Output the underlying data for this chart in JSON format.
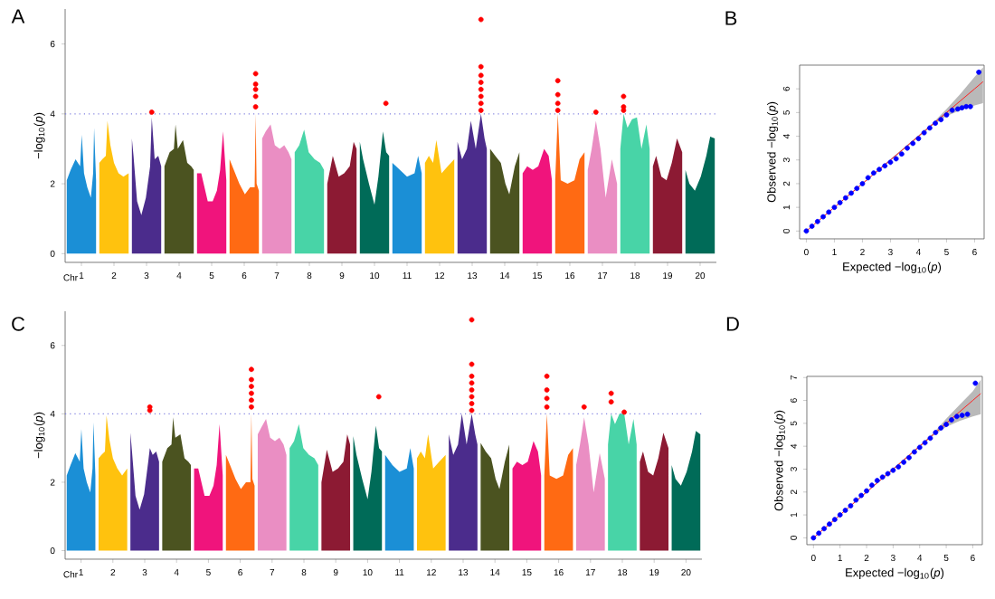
{
  "chart_data": [
    {
      "type": "area",
      "title": "A",
      "xlabel": "Chr",
      "ylabel": "−log$_{10}$(*p*)",
      "xlim": [
        0.5,
        20.5
      ],
      "xticks": [
        1,
        2,
        3,
        4,
        5,
        6,
        7,
        8,
        9,
        10,
        11,
        12,
        13,
        14,
        15,
        16,
        17,
        18,
        19,
        20
      ],
      "ylim": [
        -0.25,
        7
      ],
      "yticks": [
        0,
        2,
        4,
        6
      ],
      "ref_lines": [
        {
          "axis": "y",
          "value": 4,
          "color": "#8080e0",
          "line_style": "dotted"
        }
      ],
      "series": [
        {
          "color": "#1b8fd6",
          "x": [
            0.55,
            0.67,
            0.82,
            0.96,
            1.01,
            1.08,
            1.18,
            1.29,
            1.36,
            1.39,
            1.45
          ],
          "values": [
            2.1,
            2.4,
            2.7,
            2.5,
            3.4,
            2.3,
            1.9,
            1.6,
            2.3,
            3.6,
            2.1
          ]
        },
        {
          "color": "#ffc20e",
          "x": [
            1.55,
            1.64,
            1.75,
            1.8,
            1.89,
            2.0,
            2.14,
            2.29,
            2.45
          ],
          "values": [
            2.6,
            2.7,
            2.8,
            3.8,
            3.1,
            2.6,
            2.3,
            2.2,
            2.3
          ]
        },
        {
          "color": "#4b2c8c",
          "x": [
            2.55,
            2.6,
            2.71,
            2.84,
            2.98,
            3.11,
            3.16,
            3.25,
            3.36,
            3.45
          ],
          "values": [
            3.3,
            2.8,
            1.5,
            1.1,
            1.6,
            2.5,
            3.9,
            2.7,
            2.8,
            2.5
          ]
        },
        {
          "color": "#4b5320",
          "x": [
            3.55,
            3.71,
            3.84,
            3.89,
            3.96,
            4.12,
            4.25,
            4.37,
            4.45
          ],
          "values": [
            2.5,
            2.9,
            3.0,
            3.7,
            3.0,
            3.25,
            2.6,
            2.5,
            2.4
          ]
        },
        {
          "color": "#f0147c",
          "x": [
            4.55,
            4.68,
            4.88,
            5.03,
            5.16,
            5.26,
            5.35,
            5.45
          ],
          "values": [
            2.3,
            2.3,
            1.5,
            1.5,
            1.8,
            2.4,
            3.5,
            2.1
          ]
        },
        {
          "color": "#ff6a13",
          "x": [
            5.55,
            5.68,
            5.85,
            6.02,
            6.18,
            6.32,
            6.35,
            6.38,
            6.45
          ],
          "values": [
            2.7,
            2.4,
            2.0,
            1.7,
            1.9,
            1.9,
            4.0,
            2.0,
            1.8
          ]
        },
        {
          "color": "#ea8ec3",
          "x": [
            6.55,
            6.66,
            6.81,
            6.94,
            7.09,
            7.23,
            7.36,
            7.45
          ],
          "values": [
            3.3,
            3.5,
            3.7,
            3.1,
            3.0,
            3.1,
            2.9,
            2.7
          ]
        },
        {
          "color": "#48d4a7",
          "x": [
            7.55,
            7.69,
            7.84,
            7.98,
            8.16,
            8.33,
            8.45
          ],
          "values": [
            2.9,
            3.1,
            3.55,
            2.9,
            2.7,
            2.6,
            2.4
          ]
        },
        {
          "color": "#8c1a33",
          "x": [
            8.55,
            8.72,
            8.9,
            9.07,
            9.24,
            9.36,
            9.45
          ],
          "values": [
            2.0,
            2.8,
            2.2,
            2.3,
            2.5,
            3.2,
            3.0
          ]
        },
        {
          "color": "#006b58",
          "x": [
            9.55,
            9.65,
            9.83,
            10.0,
            10.12,
            10.26,
            10.36,
            10.45
          ],
          "values": [
            3.2,
            2.7,
            2.0,
            1.4,
            2.2,
            3.5,
            2.9,
            2.8
          ]
        },
        {
          "color": "#1b8fd6",
          "x": [
            10.55,
            10.78,
            11.0,
            11.23,
            11.34,
            11.45
          ],
          "values": [
            2.6,
            2.4,
            2.2,
            2.3,
            2.8,
            2.3
          ]
        },
        {
          "color": "#ffc20e",
          "x": [
            11.55,
            11.67,
            11.8,
            11.9,
            12.06,
            12.25,
            12.45
          ],
          "values": [
            2.6,
            2.8,
            2.6,
            3.25,
            2.3,
            2.5,
            2.7
          ]
        },
        {
          "color": "#4b2c8c",
          "x": [
            12.55,
            12.69,
            12.84,
            12.96,
            13.11,
            13.27,
            13.38,
            13.45
          ],
          "values": [
            3.2,
            2.7,
            3.0,
            3.8,
            3.0,
            4.0,
            3.3,
            3.0
          ]
        },
        {
          "color": "#4b5320",
          "x": [
            13.55,
            13.71,
            13.88,
            14.02,
            14.14,
            14.31,
            14.45
          ],
          "values": [
            3.0,
            2.8,
            2.6,
            2.0,
            1.7,
            2.5,
            2.9
          ]
        },
        {
          "color": "#f0147c",
          "x": [
            14.55,
            14.69,
            14.86,
            15.03,
            15.21,
            15.35,
            15.45
          ],
          "values": [
            2.3,
            2.5,
            2.4,
            2.5,
            3.0,
            2.8,
            2.1
          ]
        },
        {
          "color": "#ff6a13",
          "x": [
            15.55,
            15.63,
            15.72,
            15.93,
            16.14,
            16.3,
            16.45
          ],
          "values": [
            2.1,
            4.0,
            2.1,
            2.0,
            2.1,
            2.7,
            2.9
          ]
        },
        {
          "color": "#ea8ec3",
          "x": [
            16.55,
            16.67,
            16.8,
            16.94,
            17.1,
            17.29,
            17.45
          ],
          "values": [
            2.4,
            3.0,
            3.8,
            3.0,
            1.6,
            2.7,
            2.0
          ]
        },
        {
          "color": "#48d4a7",
          "x": [
            17.55,
            17.65,
            17.77,
            17.91,
            18.06,
            18.2,
            18.35,
            18.45
          ],
          "values": [
            3.0,
            4.0,
            3.6,
            3.85,
            3.9,
            3.0,
            3.7,
            3.0
          ]
        },
        {
          "color": "#8c1a33",
          "x": [
            18.55,
            18.65,
            18.81,
            18.97,
            19.13,
            19.29,
            19.45
          ],
          "values": [
            2.5,
            2.8,
            2.2,
            2.1,
            2.6,
            3.3,
            2.9
          ]
        },
        {
          "color": "#006b58",
          "x": [
            19.55,
            19.67,
            19.84,
            20.02,
            20.19,
            20.31,
            20.45
          ],
          "values": [
            2.4,
            2.0,
            1.8,
            2.2,
            2.8,
            3.35,
            3.3
          ]
        },
        {
          "type": "scatter",
          "marker": "circle",
          "color": "#ff0000",
          "x": [
            3.16,
            6.35,
            6.35,
            6.35,
            6.35,
            6.35,
            10.35,
            13.27,
            13.27,
            13.27,
            13.27,
            13.27,
            13.27,
            13.27,
            13.27,
            15.63,
            15.63,
            15.63,
            15.63,
            16.8,
            17.65,
            17.65,
            17.65
          ],
          "values": [
            4.05,
            4.2,
            4.5,
            4.7,
            4.85,
            5.15,
            4.3,
            4.1,
            4.3,
            4.5,
            4.7,
            4.9,
            5.1,
            5.35,
            6.7,
            4.1,
            4.3,
            4.55,
            4.95,
            4.05,
            4.1,
            4.2,
            4.5
          ]
        }
      ]
    },
    {
      "type": "scatter",
      "title": "B",
      "xlabel": "Expected  −log$_{10}$(*p*)",
      "ylabel": "Observed  −log$_{10}$(*p*)",
      "marker": "circle",
      "xlim": [
        -0.24,
        6.34
      ],
      "ylim": [
        -0.33,
        7.0
      ],
      "xticks": [
        0,
        1,
        2,
        3,
        4,
        5,
        6
      ],
      "yticks": [
        0,
        1,
        2,
        3,
        4,
        5,
        6
      ],
      "series": [
        {
          "type": "scatter",
          "color": "#0000ff",
          "x": [
            0,
            0.2,
            0.4,
            0.6,
            0.8,
            1.0,
            1.2,
            1.4,
            1.6,
            1.8,
            2.0,
            2.2,
            2.4,
            2.6,
            2.8,
            3.0,
            3.2,
            3.4,
            3.6,
            3.8,
            4.0,
            4.2,
            4.4,
            4.6,
            4.8,
            5.0,
            5.2,
            5.4,
            5.55,
            5.7,
            5.85,
            6.15
          ],
          "values": [
            0,
            0.2,
            0.4,
            0.6,
            0.8,
            1.0,
            1.2,
            1.4,
            1.6,
            1.8,
            2.0,
            2.25,
            2.45,
            2.6,
            2.75,
            2.9,
            3.05,
            3.25,
            3.5,
            3.7,
            3.9,
            4.15,
            4.35,
            4.55,
            4.7,
            4.9,
            5.1,
            5.15,
            5.2,
            5.25,
            5.25,
            6.7
          ]
        },
        {
          "type": "line",
          "marker": "none",
          "color": "#ff2020",
          "x": [
            0,
            4.5,
            5,
            5.5,
            6,
            6.3
          ],
          "values": [
            0,
            4.5,
            5,
            5.5,
            6,
            6.3
          ],
          "lower": [
            0,
            4.45,
            4.85,
            5.1,
            5.3,
            5.4
          ],
          "upper": [
            0,
            4.55,
            5.15,
            5.8,
            6.5,
            6.9
          ]
        }
      ]
    },
    {
      "type": "area",
      "title": "C",
      "xlabel": "Chr",
      "ylabel": "−log$_{10}$(*p*)",
      "xlim": [
        0.5,
        20.5
      ],
      "xticks": [
        1,
        2,
        3,
        4,
        5,
        6,
        7,
        8,
        9,
        10,
        11,
        12,
        13,
        14,
        15,
        16,
        17,
        18,
        19,
        20
      ],
      "ylim": [
        -0.25,
        7
      ],
      "yticks": [
        0,
        2,
        4,
        6
      ],
      "ref_lines": [
        {
          "axis": "y",
          "value": 4,
          "color": "#8080e0",
          "line_style": "dotted"
        }
      ],
      "series": [
        {
          "color": "#1b8fd6",
          "x": [
            0.55,
            0.67,
            0.82,
            0.96,
            1.01,
            1.08,
            1.18,
            1.29,
            1.36,
            1.39,
            1.45
          ],
          "values": [
            2.2,
            2.5,
            2.85,
            2.6,
            3.55,
            2.4,
            2.0,
            1.7,
            2.4,
            3.75,
            2.2
          ]
        },
        {
          "color": "#ffc20e",
          "x": [
            1.55,
            1.64,
            1.75,
            1.8,
            1.89,
            2.0,
            2.14,
            2.29,
            2.45
          ],
          "values": [
            2.7,
            2.8,
            2.9,
            3.95,
            3.25,
            2.7,
            2.4,
            2.2,
            2.4
          ]
        },
        {
          "color": "#4b2c8c",
          "x": [
            2.55,
            2.6,
            2.71,
            2.84,
            2.98,
            3.11,
            3.16,
            3.25,
            3.36,
            3.45
          ],
          "values": [
            3.45,
            2.9,
            1.6,
            1.2,
            1.65,
            2.6,
            3.0,
            2.8,
            2.9,
            2.6
          ]
        },
        {
          "color": "#4b5320",
          "x": [
            3.55,
            3.71,
            3.84,
            3.89,
            3.96,
            4.12,
            4.25,
            4.37,
            4.45
          ],
          "values": [
            2.6,
            3.0,
            3.1,
            3.9,
            3.3,
            3.4,
            2.7,
            2.6,
            2.5
          ]
        },
        {
          "color": "#f0147c",
          "x": [
            4.55,
            4.68,
            4.88,
            5.03,
            5.16,
            5.26,
            5.35,
            5.45
          ],
          "values": [
            2.4,
            2.4,
            1.6,
            1.6,
            1.9,
            2.5,
            3.7,
            2.2
          ]
        },
        {
          "color": "#ff6a13",
          "x": [
            5.55,
            5.68,
            5.85,
            6.02,
            6.18,
            6.32,
            6.35,
            6.38,
            6.45
          ],
          "values": [
            2.8,
            2.5,
            2.1,
            1.8,
            2.0,
            2.0,
            4.0,
            2.1,
            1.9
          ]
        },
        {
          "color": "#ea8ec3",
          "x": [
            6.55,
            6.66,
            6.81,
            6.94,
            7.09,
            7.23,
            7.36,
            7.45
          ],
          "values": [
            3.4,
            3.6,
            3.85,
            3.3,
            3.2,
            3.3,
            3.1,
            2.8
          ]
        },
        {
          "color": "#48d4a7",
          "x": [
            7.55,
            7.69,
            7.84,
            7.98,
            8.16,
            8.33,
            8.45
          ],
          "values": [
            3.0,
            3.2,
            3.7,
            3.0,
            2.8,
            2.7,
            2.5
          ]
        },
        {
          "color": "#8c1a33",
          "x": [
            8.55,
            8.72,
            8.9,
            9.07,
            9.24,
            9.36,
            9.45
          ],
          "values": [
            2.0,
            2.95,
            2.3,
            2.4,
            2.6,
            3.4,
            3.1
          ]
        },
        {
          "color": "#006b58",
          "x": [
            9.55,
            9.65,
            9.83,
            10.0,
            10.12,
            10.26,
            10.36,
            10.45
          ],
          "values": [
            3.35,
            2.8,
            2.1,
            1.5,
            2.3,
            3.65,
            3.0,
            2.9
          ]
        },
        {
          "color": "#1b8fd6",
          "x": [
            10.55,
            10.78,
            11.0,
            11.23,
            11.34,
            11.45
          ],
          "values": [
            2.8,
            2.5,
            2.3,
            2.4,
            3.0,
            2.4
          ]
        },
        {
          "color": "#ffc20e",
          "x": [
            11.55,
            11.67,
            11.8,
            11.9,
            12.06,
            12.25,
            12.45
          ],
          "values": [
            2.7,
            2.9,
            2.7,
            3.4,
            2.4,
            2.6,
            2.8
          ]
        },
        {
          "color": "#4b2c8c",
          "x": [
            12.55,
            12.69,
            12.84,
            12.96,
            13.11,
            13.27,
            13.38,
            13.45
          ],
          "values": [
            3.4,
            2.8,
            3.1,
            4.0,
            3.1,
            4.0,
            3.4,
            3.1
          ]
        },
        {
          "color": "#4b5320",
          "x": [
            13.55,
            13.71,
            13.88,
            14.02,
            14.14,
            14.31,
            14.45
          ],
          "values": [
            3.15,
            2.9,
            2.7,
            2.1,
            1.8,
            2.6,
            3.1
          ]
        },
        {
          "color": "#f0147c",
          "x": [
            14.55,
            14.69,
            14.86,
            15.03,
            15.21,
            15.35,
            15.45
          ],
          "values": [
            2.4,
            2.6,
            2.5,
            2.6,
            3.2,
            2.9,
            2.2
          ]
        },
        {
          "color": "#ff6a13",
          "x": [
            15.55,
            15.63,
            15.72,
            15.93,
            16.14,
            16.3,
            16.45
          ],
          "values": [
            2.2,
            4.0,
            2.2,
            2.1,
            2.2,
            2.8,
            3.0
          ]
        },
        {
          "color": "#ea8ec3",
          "x": [
            16.55,
            16.67,
            16.8,
            16.94,
            17.1,
            17.29,
            17.45
          ],
          "values": [
            2.5,
            3.1,
            3.9,
            3.1,
            1.7,
            2.85,
            2.1
          ]
        },
        {
          "color": "#48d4a7",
          "x": [
            17.55,
            17.65,
            17.77,
            17.91,
            18.06,
            18.2,
            18.35,
            18.45
          ],
          "values": [
            3.1,
            4.0,
            3.7,
            4.0,
            4.0,
            3.1,
            3.85,
            3.1
          ]
        },
        {
          "color": "#8c1a33",
          "x": [
            18.55,
            18.65,
            18.81,
            18.97,
            19.13,
            19.29,
            19.45
          ],
          "values": [
            2.6,
            2.9,
            2.3,
            2.2,
            2.7,
            3.45,
            3.0
          ]
        },
        {
          "color": "#006b58",
          "x": [
            19.55,
            19.67,
            19.84,
            20.02,
            20.19,
            20.31,
            20.45
          ],
          "values": [
            2.5,
            2.1,
            1.9,
            2.3,
            2.9,
            3.5,
            3.4
          ]
        },
        {
          "type": "scatter",
          "marker": "circle",
          "color": "#ff0000",
          "x": [
            3.16,
            3.16,
            6.35,
            6.35,
            6.35,
            6.35,
            6.35,
            6.35,
            10.35,
            13.27,
            13.27,
            13.27,
            13.27,
            13.27,
            13.27,
            13.27,
            13.27,
            15.63,
            15.63,
            15.63,
            15.63,
            16.8,
            17.65,
            17.65,
            18.06
          ],
          "values": [
            4.1,
            4.2,
            4.2,
            4.4,
            4.6,
            4.8,
            5.0,
            5.3,
            4.5,
            4.1,
            4.3,
            4.5,
            4.7,
            4.9,
            5.1,
            5.45,
            6.75,
            4.2,
            4.45,
            4.7,
            5.1,
            4.2,
            4.35,
            4.6,
            4.05
          ]
        }
      ]
    },
    {
      "type": "scatter",
      "title": "D",
      "xlabel": "Expected  −log$_{10}$(*p*)",
      "ylabel": "Observed  −log$_{10}$(*p*)",
      "marker": "circle",
      "xlim": [
        -0.25,
        6.36
      ],
      "ylim": [
        -0.3,
        7.05
      ],
      "xticks": [
        0,
        1,
        2,
        3,
        4,
        5,
        6
      ],
      "yticks": [
        0,
        1,
        2,
        3,
        4,
        5,
        6,
        7
      ],
      "series": [
        {
          "type": "scatter",
          "color": "#0000ff",
          "x": [
            0,
            0.2,
            0.4,
            0.6,
            0.8,
            1.0,
            1.2,
            1.4,
            1.6,
            1.8,
            2.0,
            2.2,
            2.4,
            2.6,
            2.8,
            3.0,
            3.2,
            3.4,
            3.6,
            3.8,
            4.0,
            4.2,
            4.4,
            4.6,
            4.8,
            5.0,
            5.2,
            5.4,
            5.6,
            5.8,
            6.1
          ],
          "values": [
            0,
            0.2,
            0.4,
            0.6,
            0.8,
            1.0,
            1.2,
            1.4,
            1.65,
            1.85,
            2.05,
            2.3,
            2.5,
            2.65,
            2.8,
            2.95,
            3.1,
            3.3,
            3.5,
            3.75,
            3.95,
            4.15,
            4.35,
            4.6,
            4.8,
            4.95,
            5.15,
            5.3,
            5.35,
            5.4,
            6.75
          ]
        },
        {
          "type": "line",
          "marker": "none",
          "color": "#ff2020",
          "x": [
            0,
            4.5,
            5,
            5.5,
            6,
            6.3
          ],
          "values": [
            0,
            4.5,
            5,
            5.5,
            6,
            6.3
          ],
          "lower": [
            0,
            4.45,
            4.85,
            5.1,
            5.3,
            5.4
          ],
          "upper": [
            0,
            4.55,
            5.2,
            5.8,
            6.4,
            6.9
          ]
        }
      ]
    }
  ]
}
